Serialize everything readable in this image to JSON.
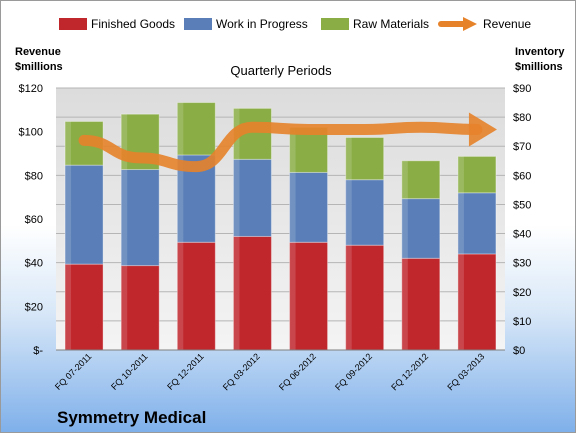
{
  "company": "Symmetry Medical",
  "chart_data": {
    "type": "bar",
    "stacked": true,
    "title": "Quarterly Periods",
    "categories": [
      "FQ 07-2011",
      "FQ 10-2011",
      "FQ 12-2011",
      "FQ 03-2012",
      "FQ 06-2012",
      "FQ 09-2012",
      "FQ 12-2012",
      "FQ 03-2013"
    ],
    "series": [
      {
        "name": "Finished Goods",
        "axis": "right",
        "color": "#c0272d",
        "values": [
          29.5,
          29,
          37,
          39,
          37,
          36,
          31.5,
          33
        ]
      },
      {
        "name": "Work in Progress",
        "axis": "right",
        "color": "#5a7fb8",
        "values": [
          34,
          33,
          30,
          26.5,
          24,
          22.5,
          20.5,
          21
        ]
      },
      {
        "name": "Raw Materials",
        "axis": "right",
        "color": "#8aad45",
        "values": [
          15,
          19,
          18,
          17.5,
          15.5,
          14.5,
          13,
          12.5
        ]
      },
      {
        "name": "Revenue",
        "axis": "left",
        "type": "line",
        "color": "#e6822a",
        "values": [
          96,
          88,
          84,
          102,
          101,
          101,
          102,
          101
        ]
      }
    ],
    "left_axis": {
      "label_line1": "Revenue",
      "label_line2": "$millions",
      "ticks": [
        "$-",
        "$20",
        "$40",
        "$60",
        "$80",
        "$100",
        "$120"
      ],
      "ylim": [
        0,
        120
      ]
    },
    "right_axis": {
      "label_line1": "Inventory",
      "label_line2": "$millions",
      "ticks": [
        "$0",
        "$10",
        "$20",
        "$30",
        "$40",
        "$50",
        "$60",
        "$70",
        "$80",
        "$90"
      ],
      "ylim": [
        0,
        90
      ]
    },
    "legend_position": "top",
    "grid": true
  }
}
